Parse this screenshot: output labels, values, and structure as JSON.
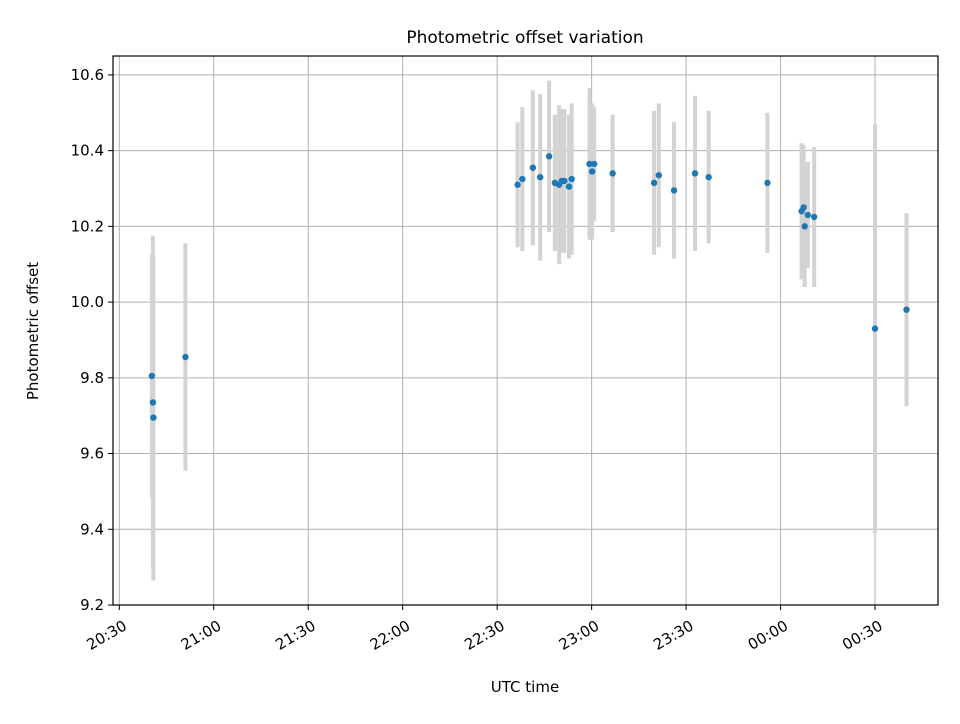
{
  "chart_data": {
    "type": "scatter",
    "title": "Photometric offset variation",
    "xlabel": "UTC time",
    "ylabel": "Photometric offset",
    "x_tick_labels": [
      "20:30",
      "21:00",
      "21:30",
      "22:00",
      "22:30",
      "23:00",
      "23:30",
      "00:00",
      "00:30"
    ],
    "x_tick_minutes": [
      0,
      30,
      60,
      90,
      120,
      150,
      180,
      210,
      240
    ],
    "x_range_minutes": [
      -2,
      260
    ],
    "y_ticks": [
      9.2,
      9.4,
      9.6,
      9.8,
      10.0,
      10.2,
      10.4,
      10.6
    ],
    "ylim": [
      9.2,
      10.65
    ],
    "grid": true,
    "marker_color": "#1f77b4",
    "errorbar_color": "#d3d3d3",
    "points": [
      {
        "t": "20:40:20",
        "y": 9.805,
        "err": 0.32
      },
      {
        "t": "20:40:40",
        "y": 9.735,
        "err": 0.44
      },
      {
        "t": "20:40:50",
        "y": 9.695,
        "err": 0.43
      },
      {
        "t": "20:51:00",
        "y": 9.855,
        "err": 0.3
      },
      {
        "t": "22:36:30",
        "y": 10.31,
        "err": 0.165
      },
      {
        "t": "22:38:00",
        "y": 10.325,
        "err": 0.19
      },
      {
        "t": "22:41:20",
        "y": 10.355,
        "err": 0.205
      },
      {
        "t": "22:43:40",
        "y": 10.33,
        "err": 0.22
      },
      {
        "t": "22:46:30",
        "y": 10.385,
        "err": 0.2
      },
      {
        "t": "22:48:20",
        "y": 10.315,
        "err": 0.18
      },
      {
        "t": "22:49:40",
        "y": 10.31,
        "err": 0.21
      },
      {
        "t": "22:50:30",
        "y": 10.32,
        "err": 0.19
      },
      {
        "t": "22:51:20",
        "y": 10.32,
        "err": 0.19
      },
      {
        "t": "22:52:50",
        "y": 10.305,
        "err": 0.19
      },
      {
        "t": "22:53:40",
        "y": 10.325,
        "err": 0.2
      },
      {
        "t": "22:59:20",
        "y": 10.365,
        "err": 0.2
      },
      {
        "t": "23:00:10",
        "y": 10.345,
        "err": 0.18
      },
      {
        "t": "23:00:50",
        "y": 10.365,
        "err": 0.15
      },
      {
        "t": "23:06:40",
        "y": 10.34,
        "err": 0.155
      },
      {
        "t": "23:19:50",
        "y": 10.315,
        "err": 0.19
      },
      {
        "t": "23:21:20",
        "y": 10.335,
        "err": 0.19
      },
      {
        "t": "23:26:10",
        "y": 10.295,
        "err": 0.18
      },
      {
        "t": "23:32:50",
        "y": 10.34,
        "err": 0.205
      },
      {
        "t": "23:37:10",
        "y": 10.33,
        "err": 0.175
      },
      {
        "t": "23:55:50",
        "y": 10.315,
        "err": 0.185
      },
      {
        "t": "00:06:40",
        "y": 10.24,
        "err": 0.18
      },
      {
        "t": "00:07:20",
        "y": 10.25,
        "err": 0.165
      },
      {
        "t": "00:07:40",
        "y": 10.2,
        "err": 0.16
      },
      {
        "t": "00:08:40",
        "y": 10.23,
        "err": 0.14
      },
      {
        "t": "00:10:40",
        "y": 10.225,
        "err": 0.185
      },
      {
        "t": "00:30:00",
        "y": 9.93,
        "err": 0.54
      },
      {
        "t": "00:40:00",
        "y": 9.98,
        "err": 0.255
      }
    ]
  }
}
